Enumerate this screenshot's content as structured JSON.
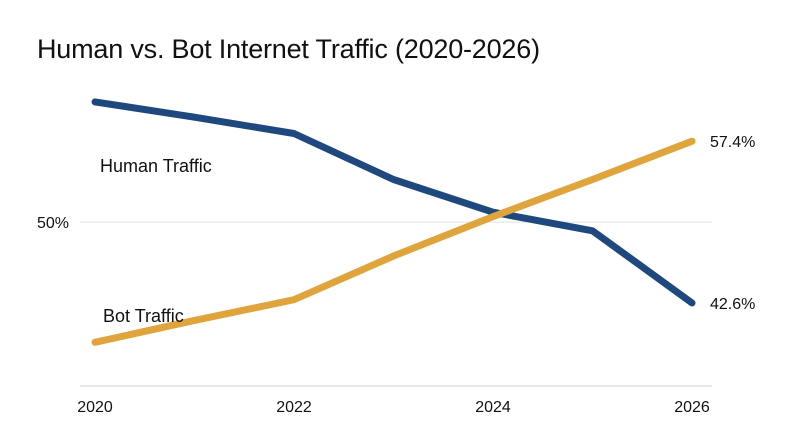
{
  "chart_data": {
    "type": "line",
    "title": "Human vs. Bot Internet Traffic (2020-2026)",
    "x": [
      2020,
      2021,
      2022,
      2023,
      2024,
      2025,
      2026
    ],
    "x_ticks": [
      "2020",
      "2022",
      "2024",
      "2026"
    ],
    "xlim": [
      2020,
      2026
    ],
    "ylim": [
      35,
      63
    ],
    "y_ticks": [
      {
        "value": 50,
        "label": "50%"
      }
    ],
    "grid": true,
    "series": [
      {
        "name": "Human Traffic",
        "color": "#1f487e",
        "values": [
          61.0,
          59.6,
          58.1,
          53.9,
          50.9,
          49.2,
          42.6
        ],
        "end_label": "42.6%"
      },
      {
        "name": "Bot Traffic",
        "color": "#e0a43c",
        "values": [
          39.0,
          41.0,
          42.9,
          46.9,
          50.5,
          53.9,
          57.4
        ],
        "end_label": "57.4%"
      }
    ]
  }
}
